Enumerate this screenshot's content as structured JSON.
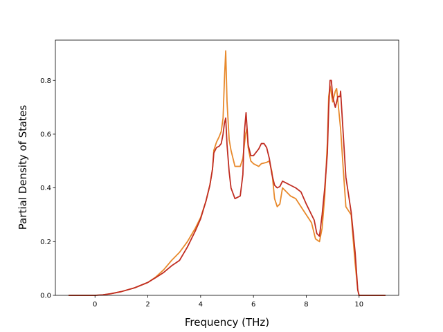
{
  "chart_data": {
    "type": "line",
    "xlabel": "Frequency (THz)",
    "ylabel": "Partial Density of States",
    "xlim": [
      -1.5,
      11.5
    ],
    "ylim": [
      0,
      0.95
    ],
    "xticks": [
      0,
      2,
      4,
      6,
      8,
      10
    ],
    "yticks": [
      0.0,
      0.2,
      0.4,
      0.6,
      0.8
    ],
    "ytick_labels": [
      "0.0",
      "0.2",
      "0.4",
      "0.6",
      "0.8"
    ],
    "grid": false,
    "series": [
      {
        "color": "#e8892b",
        "x": [
          -1.0,
          -0.5,
          0.0,
          0.3,
          0.6,
          1.0,
          1.5,
          2.0,
          2.3,
          2.6,
          2.9,
          3.2,
          3.5,
          3.8,
          4.0,
          4.2,
          4.35,
          4.45,
          4.5,
          4.6,
          4.7,
          4.78,
          4.85,
          4.9,
          4.95,
          5.0,
          5.08,
          5.15,
          5.3,
          5.5,
          5.6,
          5.7,
          5.75,
          5.8,
          5.9,
          6.0,
          6.2,
          6.3,
          6.5,
          6.6,
          6.7,
          6.8,
          6.9,
          7.0,
          7.1,
          7.2,
          7.4,
          7.6,
          7.8,
          8.0,
          8.2,
          8.35,
          8.5,
          8.6,
          8.7,
          8.8,
          8.85,
          8.9,
          9.0,
          9.1,
          9.15,
          9.2,
          9.3,
          9.4,
          9.5,
          9.7,
          9.85,
          9.95,
          10.0,
          10.5,
          11.0
        ],
        "values": [
          0,
          0,
          0,
          0.002,
          0.006,
          0.014,
          0.028,
          0.048,
          0.068,
          0.095,
          0.13,
          0.16,
          0.2,
          0.25,
          0.29,
          0.35,
          0.41,
          0.47,
          0.54,
          0.57,
          0.59,
          0.61,
          0.66,
          0.8,
          0.91,
          0.72,
          0.58,
          0.54,
          0.48,
          0.48,
          0.51,
          0.6,
          0.62,
          0.55,
          0.5,
          0.49,
          0.48,
          0.49,
          0.495,
          0.5,
          0.46,
          0.36,
          0.33,
          0.34,
          0.4,
          0.39,
          0.37,
          0.36,
          0.33,
          0.3,
          0.27,
          0.21,
          0.2,
          0.25,
          0.37,
          0.57,
          0.74,
          0.78,
          0.72,
          0.76,
          0.77,
          0.72,
          0.62,
          0.47,
          0.33,
          0.3,
          0.12,
          0.02,
          0,
          0,
          0
        ]
      },
      {
        "color": "#c02d22",
        "x": [
          -1.0,
          -0.5,
          0.0,
          0.3,
          0.6,
          1.0,
          1.5,
          2.0,
          2.3,
          2.6,
          2.9,
          3.2,
          3.5,
          3.8,
          4.0,
          4.2,
          4.35,
          4.45,
          4.5,
          4.6,
          4.7,
          4.78,
          4.85,
          4.9,
          4.95,
          5.0,
          5.08,
          5.15,
          5.3,
          5.5,
          5.6,
          5.65,
          5.72,
          5.8,
          5.9,
          6.0,
          6.2,
          6.3,
          6.4,
          6.5,
          6.6,
          6.7,
          6.8,
          6.9,
          7.0,
          7.1,
          7.2,
          7.4,
          7.6,
          7.8,
          8.0,
          8.2,
          8.3,
          8.4,
          8.5,
          8.6,
          8.7,
          8.8,
          8.85,
          8.9,
          8.95,
          9.0,
          9.1,
          9.2,
          9.28,
          9.3,
          9.4,
          9.5,
          9.7,
          9.85,
          9.95,
          10.0,
          10.5,
          11.0
        ],
        "values": [
          0,
          0,
          0,
          0.002,
          0.006,
          0.014,
          0.028,
          0.048,
          0.066,
          0.085,
          0.11,
          0.13,
          0.18,
          0.24,
          0.285,
          0.35,
          0.41,
          0.47,
          0.53,
          0.55,
          0.555,
          0.565,
          0.6,
          0.64,
          0.66,
          0.56,
          0.46,
          0.4,
          0.36,
          0.37,
          0.45,
          0.6,
          0.68,
          0.56,
          0.52,
          0.52,
          0.545,
          0.565,
          0.565,
          0.55,
          0.51,
          0.45,
          0.41,
          0.4,
          0.405,
          0.425,
          0.42,
          0.41,
          0.4,
          0.385,
          0.34,
          0.3,
          0.28,
          0.23,
          0.22,
          0.3,
          0.4,
          0.53,
          0.7,
          0.8,
          0.8,
          0.74,
          0.7,
          0.74,
          0.74,
          0.76,
          0.6,
          0.44,
          0.31,
          0.16,
          0.02,
          0,
          0,
          0
        ]
      }
    ]
  }
}
